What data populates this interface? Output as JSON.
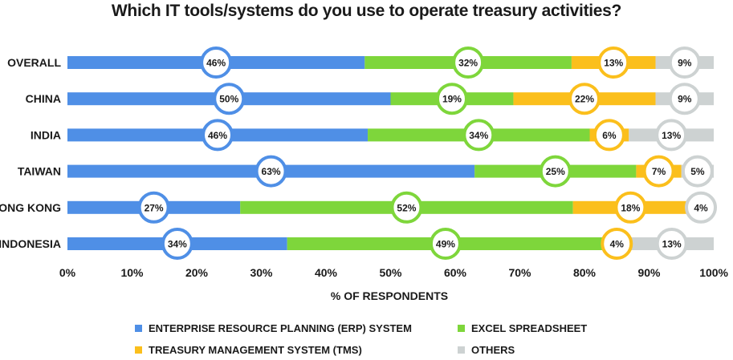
{
  "chart_data": {
    "type": "bar",
    "orientation": "horizontal",
    "stacked": true,
    "title": "Which IT tools/systems do you use to operate treasury activities?",
    "xlabel": "% OF RESPONDENTS",
    "ylabel": "",
    "xlim": [
      0,
      100
    ],
    "x_ticks": [
      "0%",
      "10%",
      "20%",
      "30%",
      "40%",
      "50%",
      "60%",
      "70%",
      "80%",
      "90%",
      "100%"
    ],
    "categories": [
      "OVERALL",
      "CHINA",
      "INDIA",
      "TAIWAN",
      "HONG KONG",
      "INDONESIA"
    ],
    "series": [
      {
        "name": "ENTERPRISE RESOURCE PLANNING (ERP) SYSTEM",
        "color": "#4f8fe6",
        "values": [
          46,
          50,
          46,
          63,
          27,
          34
        ],
        "labels": [
          "46%",
          "50%",
          "46%",
          "63%",
          "27%",
          "34%"
        ]
      },
      {
        "name": "EXCEL SPREADSHEET",
        "color": "#7ed63b",
        "values": [
          32,
          19,
          34,
          25,
          52,
          49
        ],
        "labels": [
          "32%",
          "19%",
          "34%",
          "25%",
          "52%",
          "49%"
        ]
      },
      {
        "name": "TREASURY MANAGEMENT SYSTEM (TMS)",
        "color": "#fbbf1c",
        "values": [
          13,
          22,
          6,
          7,
          18,
          4
        ],
        "labels": [
          "13%",
          "22%",
          "6%",
          "7%",
          "18%",
          "4%"
        ]
      },
      {
        "name": "OTHERS",
        "color": "#cdd2d2",
        "values": [
          9,
          9,
          13,
          5,
          4,
          13
        ],
        "labels": [
          "9%",
          "9%",
          "13%",
          "5%",
          "4%",
          "13%"
        ]
      }
    ],
    "grid": false,
    "legend_position": "bottom"
  }
}
